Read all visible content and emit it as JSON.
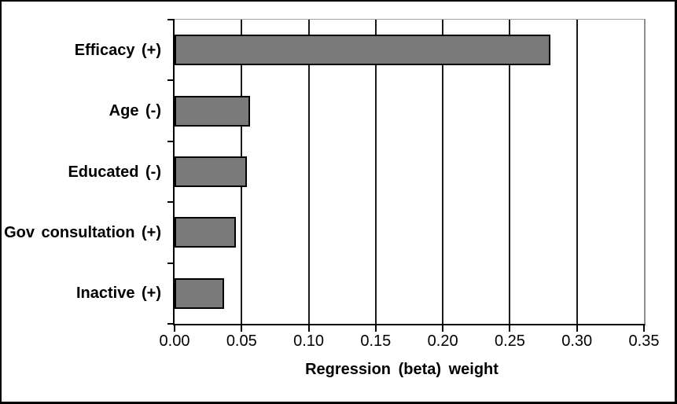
{
  "chart_data": {
    "type": "bar",
    "orientation": "horizontal",
    "categories": [
      "Efficacy (+)",
      "Age (-)",
      "Educated (-)",
      "Gov consultation (+)",
      "Inactive (+)"
    ],
    "values": [
      0.28,
      0.056,
      0.054,
      0.046,
      0.037
    ],
    "xlabel": "Regression (beta) weight",
    "ylabel": "",
    "title": "",
    "xlim": [
      0,
      0.35
    ],
    "xticks": [
      "0.00",
      "0.05",
      "0.10",
      "0.15",
      "0.20",
      "0.25",
      "0.30",
      "0.35"
    ],
    "grid": "vertical-gridlines-at-each-x-tick",
    "legend": "none",
    "colors": {
      "bar_fill": "#7a7a7a",
      "bar_border": "#000000",
      "axis_line": "#000000",
      "gridline": "#1a1a1a",
      "plot_border": "#9f9f9f",
      "background": "#ffffff",
      "text": "#000000",
      "figure_border": "#000000"
    }
  }
}
